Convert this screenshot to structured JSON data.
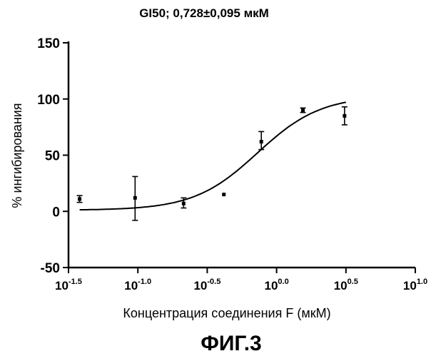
{
  "chart_data": {
    "type": "scatter",
    "title": "GI50; 0,728±0,095 мкМ",
    "xlabel": "Концентрация соединения F (мкМ)",
    "ylabel": "% ингибирования",
    "x_scale": "log10",
    "xlim": [
      -1.5,
      1.0
    ],
    "ylim": [
      -50,
      150
    ],
    "x_ticks": [
      {
        "base": "10",
        "exp": "-1.5",
        "value": -1.5
      },
      {
        "base": "10",
        "exp": "-1.0",
        "value": -1.0
      },
      {
        "base": "10",
        "exp": "-0.5",
        "value": -0.5
      },
      {
        "base": "10",
        "exp": "0.0",
        "value": 0.0
      },
      {
        "base": "10",
        "exp": "0.5",
        "value": 0.5
      },
      {
        "base": "10",
        "exp": "1.0",
        "value": 1.0
      }
    ],
    "y_ticks": [
      {
        "label": "150",
        "value": 150
      },
      {
        "label": "100",
        "value": 100
      },
      {
        "label": "50",
        "value": 50
      },
      {
        "label": "0",
        "value": 0
      },
      {
        "label": "-50",
        "value": -50
      }
    ],
    "points": [
      {
        "x": -1.42,
        "y": 11,
        "err_low": 8,
        "err_high": 14
      },
      {
        "x": -1.02,
        "y": 12,
        "err_low": -8,
        "err_high": 31
      },
      {
        "x": -0.67,
        "y": 7,
        "err_low": 3,
        "err_high": 12
      },
      {
        "x": -0.38,
        "y": 15,
        "err_low": 15,
        "err_high": 15
      },
      {
        "x": -0.11,
        "y": 62,
        "err_low": 55,
        "err_high": 71
      },
      {
        "x": 0.19,
        "y": 90,
        "err_low": 88,
        "err_high": 92
      },
      {
        "x": 0.49,
        "y": 85,
        "err_low": 77,
        "err_high": 93
      }
    ],
    "fit": {
      "model": "sigmoidal dose-response",
      "bottom": 1,
      "top": 103,
      "log_ec50": -0.138,
      "hill": 1.9,
      "x_start": -1.42,
      "x_end": 0.5
    }
  },
  "figure_label": "ФИГ.3"
}
